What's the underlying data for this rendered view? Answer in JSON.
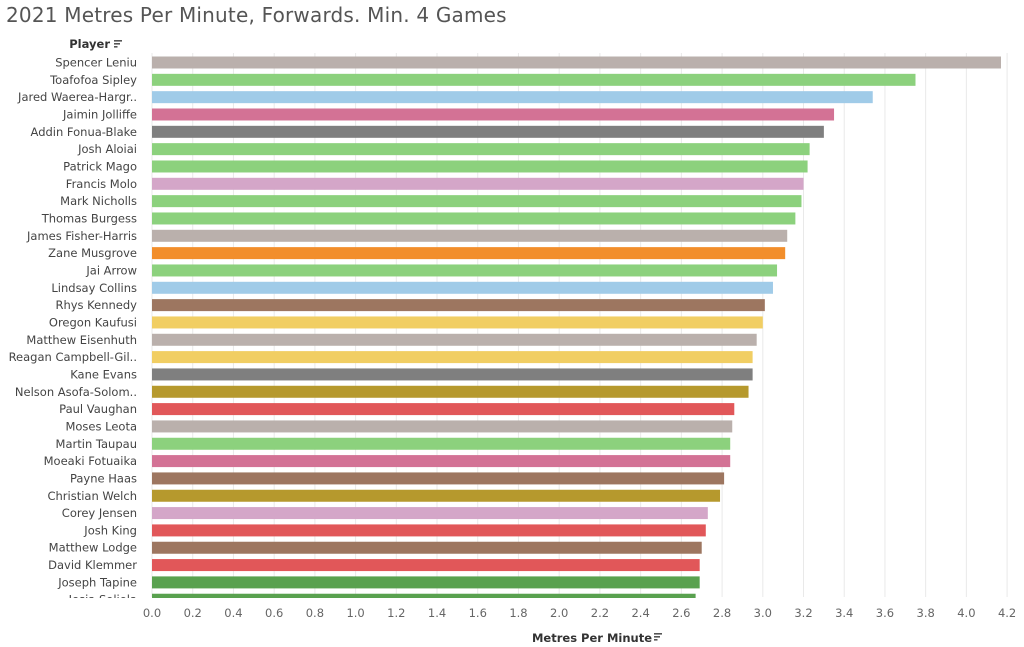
{
  "chart_data": {
    "type": "bar",
    "orientation": "horizontal",
    "title": "2021 Metres Per Minute, Forwards. Min. 4 Games",
    "row_header": "Player",
    "xlabel": "Metres Per Minute",
    "xlim": [
      0,
      4.25
    ],
    "xticks": [
      "0.0",
      "0.2",
      "0.4",
      "0.6",
      "0.8",
      "1.0",
      "1.2",
      "1.4",
      "1.6",
      "1.8",
      "2.0",
      "2.2",
      "2.4",
      "2.6",
      "2.8",
      "3.0",
      "3.2",
      "3.4",
      "3.6",
      "3.8",
      "4.0",
      "4.2"
    ],
    "grid": true,
    "bars": [
      {
        "label": "Spencer Leniu",
        "value": 4.17,
        "color": "#bab0ac"
      },
      {
        "label": "Toafofoa Sipley",
        "value": 3.75,
        "color": "#8cd17d"
      },
      {
        "label": "Jared Waerea-Hargr..",
        "value": 3.54,
        "color": "#a0cbe8"
      },
      {
        "label": "Jaimin Jolliffe",
        "value": 3.35,
        "color": "#d37295"
      },
      {
        "label": "Addin Fonua-Blake",
        "value": 3.3,
        "color": "#7f7f7f"
      },
      {
        "label": "Josh Aloiai",
        "value": 3.23,
        "color": "#8cd17d"
      },
      {
        "label": "Patrick Mago",
        "value": 3.22,
        "color": "#8cd17d"
      },
      {
        "label": "Francis Molo",
        "value": 3.2,
        "color": "#d4a6c8"
      },
      {
        "label": "Mark Nicholls",
        "value": 3.19,
        "color": "#8cd17d"
      },
      {
        "label": "Thomas Burgess",
        "value": 3.16,
        "color": "#8cd17d"
      },
      {
        "label": "James Fisher-Harris",
        "value": 3.12,
        "color": "#bab0ac"
      },
      {
        "label": "Zane Musgrove",
        "value": 3.11,
        "color": "#f28e2b"
      },
      {
        "label": "Jai Arrow",
        "value": 3.07,
        "color": "#8cd17d"
      },
      {
        "label": "Lindsay Collins",
        "value": 3.05,
        "color": "#a0cbe8"
      },
      {
        "label": "Rhys Kennedy",
        "value": 3.01,
        "color": "#9d7660"
      },
      {
        "label": "Oregon Kaufusi",
        "value": 3.0,
        "color": "#f1ce63"
      },
      {
        "label": "Matthew Eisenhuth",
        "value": 2.97,
        "color": "#bab0ac"
      },
      {
        "label": "Reagan Campbell-Gil..",
        "value": 2.95,
        "color": "#f1ce63"
      },
      {
        "label": "Kane Evans",
        "value": 2.95,
        "color": "#7f7f7f"
      },
      {
        "label": "Nelson Asofa-Solom..",
        "value": 2.93,
        "color": "#b6992d"
      },
      {
        "label": "Paul Vaughan",
        "value": 2.86,
        "color": "#e15759"
      },
      {
        "label": "Moses Leota",
        "value": 2.85,
        "color": "#bab0ac"
      },
      {
        "label": "Martin Taupau",
        "value": 2.84,
        "color": "#8cd17d"
      },
      {
        "label": "Moeaki Fotuaika",
        "value": 2.84,
        "color": "#d37295"
      },
      {
        "label": "Payne Haas",
        "value": 2.81,
        "color": "#9d7660"
      },
      {
        "label": "Christian Welch",
        "value": 2.79,
        "color": "#b6992d"
      },
      {
        "label": "Corey Jensen",
        "value": 2.73,
        "color": "#d4a6c8"
      },
      {
        "label": "Josh King",
        "value": 2.72,
        "color": "#e15759"
      },
      {
        "label": "Matthew Lodge",
        "value": 2.7,
        "color": "#9d7660"
      },
      {
        "label": "David Klemmer",
        "value": 2.69,
        "color": "#e15759"
      },
      {
        "label": "Joseph Tapine",
        "value": 2.69,
        "color": "#59a14f"
      },
      {
        "label": "Josia Soliola",
        "value": 2.67,
        "color": "#59a14f"
      }
    ]
  }
}
